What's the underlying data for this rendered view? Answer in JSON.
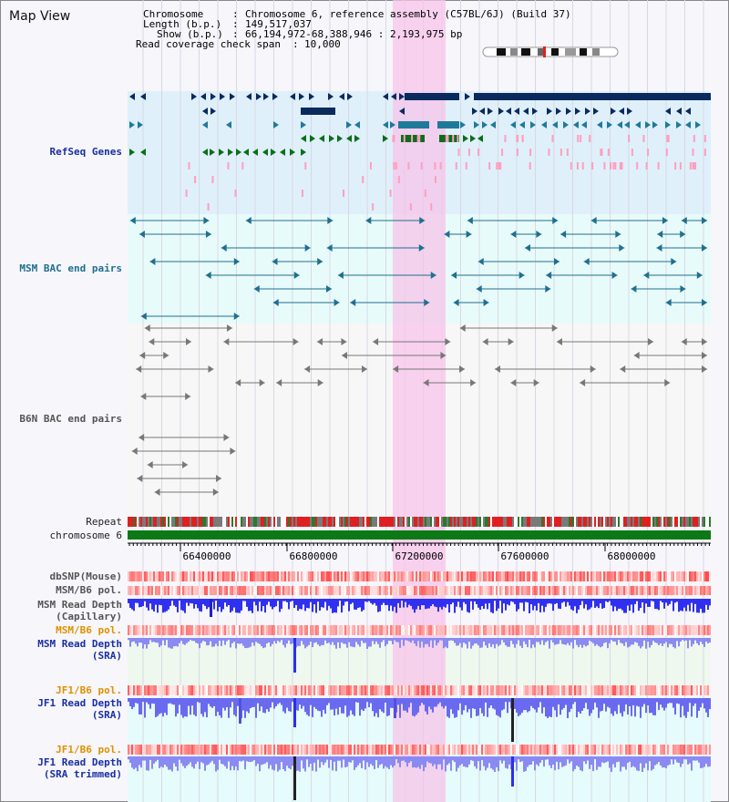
{
  "window": {
    "title": "Map View"
  },
  "info": {
    "chromosome_key": "Chromosome",
    "chromosome_val": "Chromosome 6, reference assembly (C57BL/6J) (Build 37)",
    "length_key": "Length (b.p.)",
    "length_val": "149,517,037",
    "show_key": "Show (b.p.)",
    "show_val": "66,194,972-68,388,946 : 2,193,975 bp",
    "coverage_key": "Read coverage check span",
    "coverage_val": "10,000"
  },
  "tracks": {
    "refseq": "RefSeq Genes",
    "msm_bac": "MSM BAC end pairs",
    "b6n_bac": "B6N BAC end pairs",
    "repeat": "Repeat",
    "chromosome": "chromosome 6",
    "dbsnp": "dbSNP(Mouse)",
    "msm_b6_pol_1": "MSM/B6 pol.",
    "msm_depth_cap_1": "MSM Read Depth",
    "msm_depth_cap_2": "(Capillary)",
    "msm_b6_pol_2": "MSM/B6 pol.",
    "msm_depth_sra_1": "MSM Read Depth",
    "msm_depth_sra_2": "(SRA)",
    "jf1_pol_1": "JF1/B6 pol.",
    "jf1_depth_sra_1": "JF1 Read Depth",
    "jf1_depth_sra_2": "(SRA)",
    "jf1_pol_2": "JF1/B6 pol.",
    "jf1_depth_trim_1": "JF1 Read Depth",
    "jf1_depth_trim_2": "(SRA trimmed)"
  },
  "axis": {
    "ticks": [
      "66400000",
      "66800000",
      "67200000",
      "67600000",
      "68000000"
    ]
  },
  "colors": {
    "navy": "#0a2a5e",
    "teal": "#1f7a9a",
    "green": "#0a6e1a",
    "pink": "#ff9fc0",
    "highlight": "#f9d2ee",
    "depth_blue": "#2a2ef0",
    "depth_light": "#8080f0",
    "pol_red": "#e83030"
  }
}
